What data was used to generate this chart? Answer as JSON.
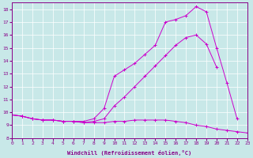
{
  "xlabel": "Windchill (Refroidissement éolien,°C)",
  "bg_color": "#c8e8e8",
  "grid_color": "#b0d8d8",
  "line_color": "#cc00cc",
  "xlim": [
    0,
    23
  ],
  "ylim": [
    8,
    18.5
  ],
  "xticks": [
    0,
    1,
    2,
    3,
    4,
    5,
    6,
    7,
    8,
    9,
    10,
    11,
    12,
    13,
    14,
    15,
    16,
    17,
    18,
    19,
    20,
    21,
    22,
    23
  ],
  "yticks": [
    8,
    9,
    10,
    11,
    12,
    13,
    14,
    15,
    16,
    17,
    18
  ],
  "line1_x": [
    0,
    1,
    2,
    3,
    4,
    5,
    6,
    7,
    8,
    9,
    10,
    11,
    12,
    13,
    14,
    15,
    16,
    17,
    18,
    19,
    20,
    21,
    22,
    23
  ],
  "line1_y": [
    9.8,
    9.7,
    9.5,
    9.4,
    9.4,
    9.3,
    9.3,
    9.2,
    9.2,
    9.2,
    9.3,
    9.3,
    9.4,
    9.4,
    9.4,
    9.4,
    9.3,
    9.2,
    9.0,
    8.9,
    8.7,
    8.6,
    8.5,
    8.4
  ],
  "line2_x": [
    0,
    1,
    2,
    3,
    4,
    5,
    6,
    7,
    8,
    9,
    10,
    11,
    12,
    13,
    14,
    15,
    16,
    17,
    18,
    19,
    20,
    21,
    22,
    23
  ],
  "line2_y": [
    9.8,
    9.7,
    9.5,
    9.4,
    9.4,
    9.3,
    9.3,
    9.2,
    9.3,
    9.5,
    10.5,
    11.2,
    12.0,
    12.8,
    13.6,
    14.4,
    15.2,
    15.8,
    16.0,
    15.3,
    13.5,
    null,
    null,
    null
  ],
  "line3_x": [
    0,
    1,
    2,
    3,
    4,
    5,
    6,
    7,
    8,
    9,
    10,
    11,
    12,
    13,
    14,
    15,
    16,
    17,
    18,
    19,
    20,
    21,
    22,
    23
  ],
  "line3_y": [
    9.8,
    9.7,
    9.5,
    9.4,
    9.4,
    9.3,
    9.3,
    9.3,
    9.5,
    10.3,
    12.8,
    13.3,
    13.8,
    14.5,
    15.2,
    17.0,
    17.2,
    17.5,
    18.2,
    17.8,
    15.0,
    12.3,
    9.5,
    null
  ]
}
